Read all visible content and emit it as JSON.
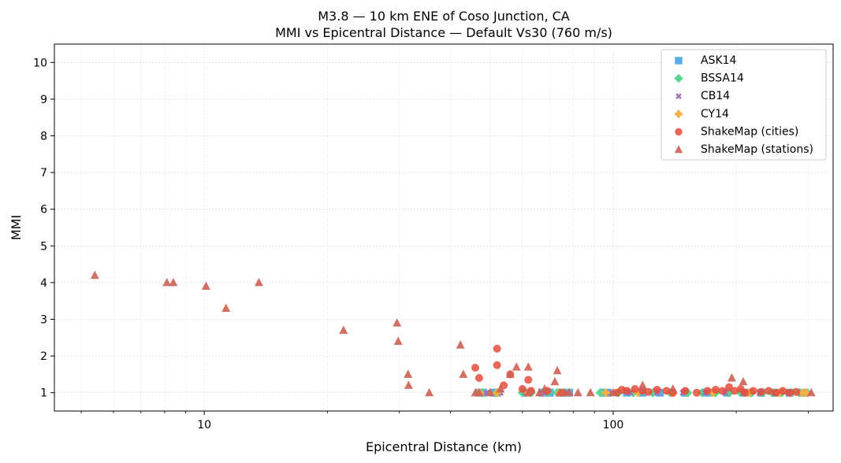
{
  "chart_data": {
    "type": "scatter",
    "title": "M3.8 — 10 km ENE of Coso Junction, CA",
    "subtitle": "MMI vs Epicentral Distance — Default Vs30 (760 m/s)",
    "xlabel": "Epicentral Distance (km)",
    "ylabel": "MMI",
    "xscale": "log",
    "xlim": [
      4.3,
      345
    ],
    "ylim": [
      0.5,
      10.5
    ],
    "xticks": [
      10,
      100
    ],
    "xtick_labels": [
      "10",
      "100"
    ],
    "yticks": [
      1,
      2,
      3,
      4,
      5,
      6,
      7,
      8,
      9,
      10
    ],
    "ytick_labels": [
      "1",
      "2",
      "3",
      "4",
      "5",
      "6",
      "7",
      "8",
      "9",
      "10"
    ],
    "grid": true,
    "legend_position": "top-right",
    "series": [
      {
        "name": "ASK14",
        "marker": "square",
        "color": "#5dade2",
        "points": [
          [
            47,
            1
          ],
          [
            48,
            1
          ],
          [
            51,
            1
          ],
          [
            52,
            1
          ],
          [
            61,
            1
          ],
          [
            62,
            1
          ],
          [
            67,
            1
          ],
          [
            70,
            1
          ],
          [
            75,
            1
          ],
          [
            78,
            1
          ],
          [
            95,
            1
          ],
          [
            97,
            1
          ],
          [
            108,
            1
          ],
          [
            118,
            1
          ],
          [
            130,
            1
          ],
          [
            150,
            1
          ],
          [
            170,
            1
          ],
          [
            190,
            1
          ],
          [
            210,
            1
          ],
          [
            230,
            1
          ],
          [
            250,
            1
          ],
          [
            270,
            1
          ],
          [
            290,
            1
          ]
        ]
      },
      {
        "name": "BSSA14",
        "marker": "diamond",
        "color": "#58d68d",
        "points": [
          [
            48,
            1
          ],
          [
            52,
            1
          ],
          [
            60,
            1
          ],
          [
            63,
            1
          ],
          [
            69,
            1
          ],
          [
            73,
            1
          ],
          [
            76,
            1
          ],
          [
            93,
            1
          ],
          [
            103,
            1
          ],
          [
            112,
            1
          ],
          [
            125,
            1
          ],
          [
            138,
            1
          ],
          [
            152,
            1
          ],
          [
            165,
            1
          ],
          [
            178,
            1
          ],
          [
            192,
            1
          ],
          [
            205,
            1
          ],
          [
            218,
            1
          ],
          [
            232,
            1
          ],
          [
            245,
            1
          ],
          [
            258,
            1
          ],
          [
            272,
            1
          ],
          [
            285,
            1
          ],
          [
            298,
            1
          ]
        ]
      },
      {
        "name": "CB14",
        "marker": "x",
        "color": "#a569bd",
        "points": [
          [
            49,
            1
          ],
          [
            53,
            1
          ],
          [
            61,
            1
          ],
          [
            68,
            1
          ],
          [
            77,
            1
          ],
          [
            98,
            1
          ],
          [
            110,
            1
          ],
          [
            128,
            1
          ],
          [
            148,
            1
          ],
          [
            168,
            1
          ],
          [
            188,
            1
          ],
          [
            208,
            1
          ],
          [
            228,
            1
          ],
          [
            248,
            1
          ],
          [
            268,
            1
          ],
          [
            288,
            1
          ]
        ]
      },
      {
        "name": "CY14",
        "marker": "plus",
        "color": "#f5b041",
        "points": [
          [
            47,
            1
          ],
          [
            52,
            1
          ],
          [
            62,
            1
          ],
          [
            74,
            1
          ],
          [
            96,
            1
          ],
          [
            115,
            1
          ],
          [
            140,
            1
          ],
          [
            175,
            1
          ],
          [
            215,
            1
          ],
          [
            255,
            1
          ],
          [
            290,
            1
          ],
          [
            296,
            1
          ]
        ]
      },
      {
        "name": "ShakeMap (cities)",
        "marker": "circle",
        "color": "#e74c3c",
        "points": [
          [
            46,
            1.68
          ],
          [
            47,
            1.4
          ],
          [
            52,
            2.2
          ],
          [
            52,
            1.75
          ],
          [
            54,
            1.2
          ],
          [
            56,
            1.5
          ],
          [
            60,
            1.1
          ],
          [
            62,
            1.35
          ],
          [
            63,
            1.05
          ],
          [
            69,
            1.05
          ],
          [
            75,
            1.0
          ],
          [
            102,
            1.0
          ],
          [
            105,
            1.08
          ],
          [
            108,
            1.05
          ],
          [
            113,
            1.1
          ],
          [
            118,
            1.05
          ],
          [
            122,
            1.02
          ],
          [
            128,
            1.08
          ],
          [
            135,
            1.05
          ],
          [
            140,
            1.0
          ],
          [
            150,
            1.05
          ],
          [
            160,
            1.0
          ],
          [
            170,
            1.05
          ],
          [
            178,
            1.08
          ],
          [
            185,
            1.05
          ],
          [
            192,
            1.15
          ],
          [
            198,
            1.05
          ],
          [
            205,
            1.1
          ],
          [
            210,
            1.0
          ],
          [
            220,
            1.05
          ],
          [
            230,
            1.02
          ],
          [
            240,
            1.05
          ],
          [
            250,
            1.0
          ],
          [
            260,
            1.05
          ],
          [
            270,
            1.0
          ],
          [
            280,
            1.02
          ]
        ]
      },
      {
        "name": "ShakeMap (stations)",
        "marker": "triangle",
        "color": "#cd6155",
        "points": [
          [
            5.4,
            4.2
          ],
          [
            8.1,
            4.0
          ],
          [
            8.4,
            4.0
          ],
          [
            10.1,
            3.9
          ],
          [
            11.3,
            3.3
          ],
          [
            13.6,
            4.0
          ],
          [
            21.9,
            2.7
          ],
          [
            29.6,
            2.9
          ],
          [
            29.8,
            2.4
          ],
          [
            31.5,
            1.5
          ],
          [
            31.6,
            1.2
          ],
          [
            35.5,
            1.0
          ],
          [
            42.3,
            2.3
          ],
          [
            43.0,
            1.5
          ],
          [
            46,
            1.0
          ],
          [
            47,
            1.0
          ],
          [
            50,
            1.0
          ],
          [
            53,
            1.1
          ],
          [
            56,
            1.5
          ],
          [
            58,
            1.7
          ],
          [
            62,
            1.7
          ],
          [
            62,
            1.0
          ],
          [
            66,
            1.0
          ],
          [
            68,
            1.1
          ],
          [
            72,
            1.3
          ],
          [
            73,
            1.6
          ],
          [
            74,
            1.0
          ],
          [
            78,
            1.0
          ],
          [
            82,
            1.0
          ],
          [
            88,
            1.0
          ],
          [
            100,
            1.0
          ],
          [
            118,
            1.2
          ],
          [
            140,
            1.1
          ],
          [
            195,
            1.4
          ],
          [
            208,
            1.3
          ],
          [
            305,
            1.0
          ]
        ]
      }
    ]
  }
}
